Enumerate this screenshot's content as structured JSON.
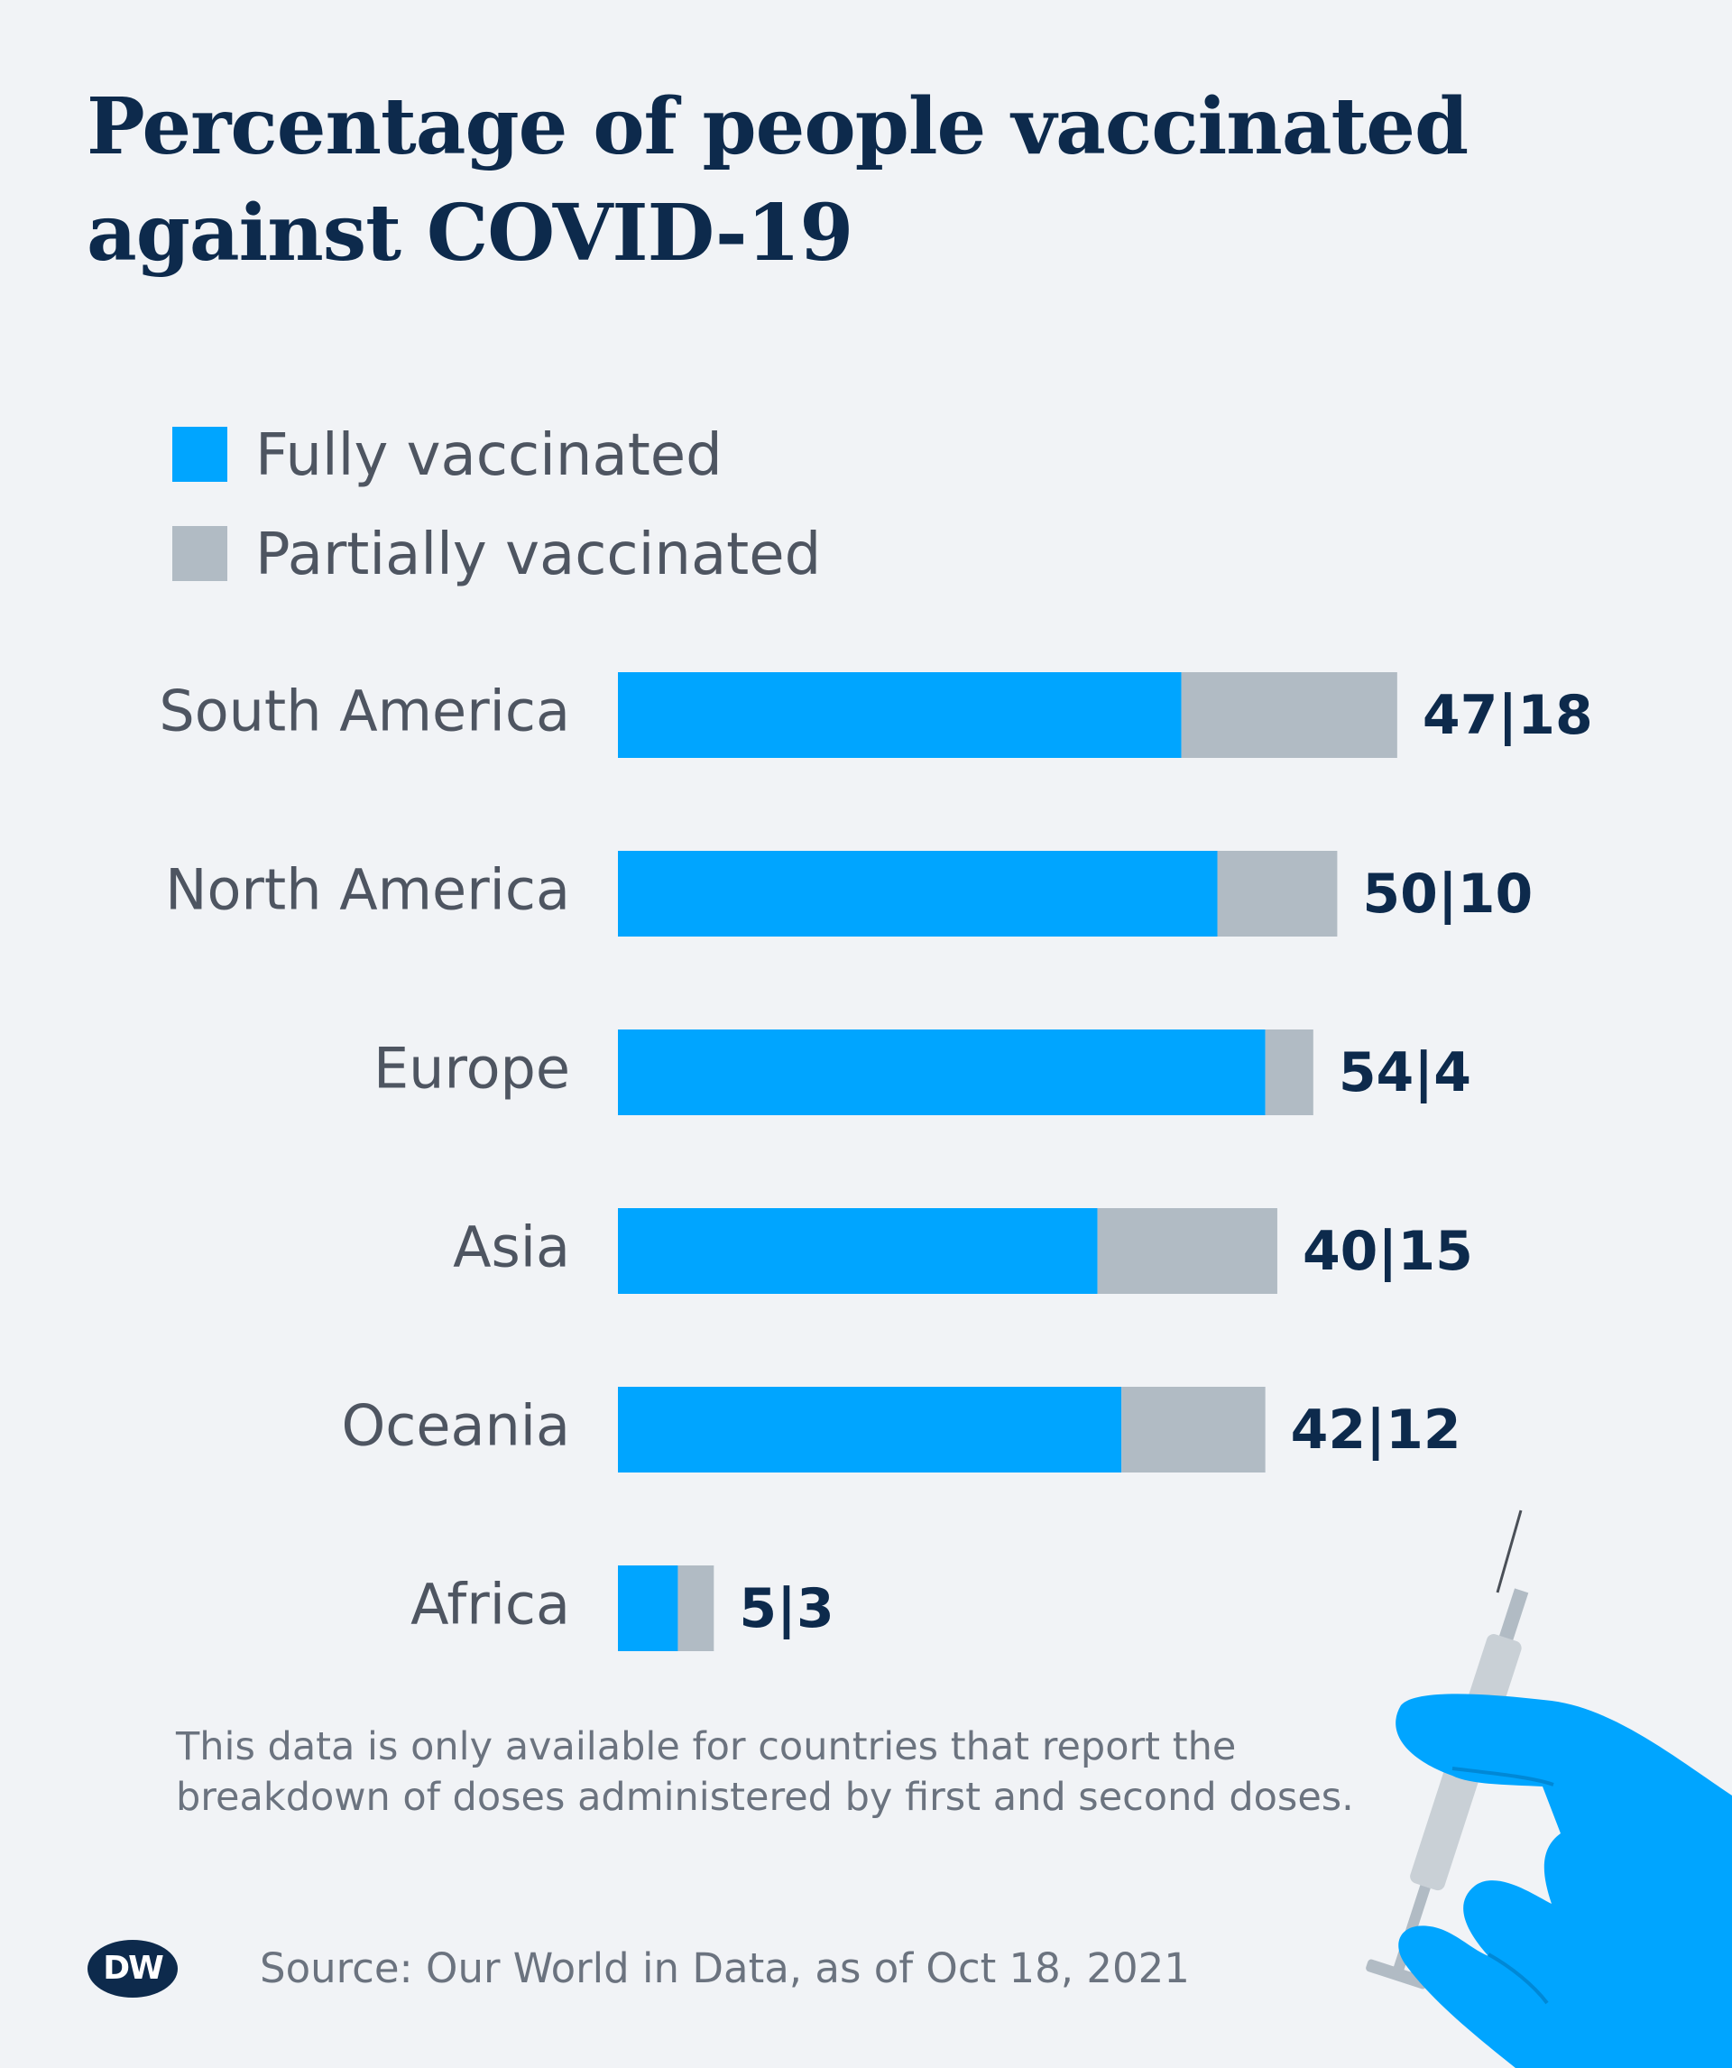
{
  "chart_data": {
    "type": "bar",
    "orientation": "horizontal",
    "stacked": true,
    "title": "Percentage of people vaccinated against COVID-19",
    "categories": [
      "South America",
      "North America",
      "Europe",
      "Asia",
      "Oceania",
      "Africa"
    ],
    "series": [
      {
        "name": "Fully vaccinated",
        "color": "#00a5ff",
        "values": [
          47,
          50,
          54,
          40,
          42,
          5
        ]
      },
      {
        "name": "Partially vaccinated",
        "color": "#b1bbc4",
        "values": [
          18,
          10,
          4,
          15,
          12,
          3
        ]
      }
    ],
    "data_labels": [
      "47|18",
      "50|10",
      "54|4",
      "40|15",
      "42|12",
      "5|3"
    ],
    "legend_position": "top-left",
    "grid": false,
    "xlim": [
      0,
      70
    ]
  },
  "note": "This data is only available for countries that report the breakdown of doses administered by first and second doses.",
  "source": "Source: Our World in Data, as of Oct 18, 2021",
  "logo_text": "DW",
  "colors": {
    "background": "#f1f3f6",
    "title": "#0d2a4c",
    "label_text": "#4e5561",
    "value_text": "#0d2a4c",
    "glove": "#00a5ff"
  },
  "illustration": "syringe-held-by-gloved-hand"
}
